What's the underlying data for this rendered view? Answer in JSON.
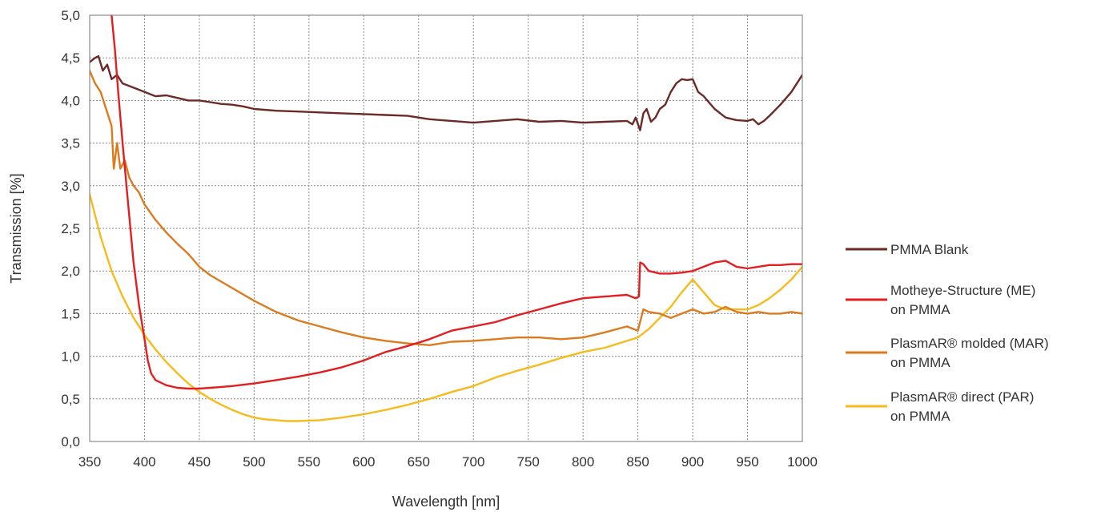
{
  "chart_data": {
    "type": "line",
    "title": "",
    "xlabel": "Wavelength [nm]",
    "ylabel": "Transmission [%]",
    "xlim": [
      350,
      1000
    ],
    "ylim": [
      0,
      5
    ],
    "xticks": [
      350,
      400,
      450,
      500,
      550,
      600,
      650,
      700,
      750,
      800,
      850,
      900,
      950,
      1000
    ],
    "yticks": [
      "0,0",
      "0,5",
      "1,0",
      "1,5",
      "2,0",
      "2,5",
      "3,0",
      "3,5",
      "4,0",
      "4,5",
      "5,0"
    ],
    "grid": true,
    "legend_position": "right",
    "series": [
      {
        "name": "PMMA Blank",
        "legend_lines": [
          "PMMA Blank"
        ],
        "color": "#6b2a25",
        "x": [
          350,
          355,
          358,
          362,
          366,
          370,
          375,
          380,
          390,
          400,
          410,
          420,
          430,
          440,
          450,
          460,
          470,
          480,
          490,
          500,
          520,
          540,
          560,
          580,
          600,
          620,
          640,
          660,
          680,
          700,
          720,
          740,
          760,
          780,
          800,
          820,
          840,
          845,
          848,
          852,
          855,
          858,
          862,
          866,
          870,
          875,
          880,
          885,
          890,
          895,
          900,
          905,
          910,
          920,
          930,
          940,
          950,
          955,
          960,
          965,
          970,
          980,
          990,
          1000
        ],
        "y": [
          4.45,
          4.5,
          4.52,
          4.35,
          4.42,
          4.25,
          4.3,
          4.2,
          4.15,
          4.1,
          4.05,
          4.06,
          4.03,
          4.0,
          4.0,
          3.98,
          3.96,
          3.95,
          3.93,
          3.9,
          3.88,
          3.87,
          3.86,
          3.85,
          3.84,
          3.83,
          3.82,
          3.78,
          3.76,
          3.74,
          3.76,
          3.78,
          3.75,
          3.76,
          3.74,
          3.75,
          3.76,
          3.72,
          3.8,
          3.65,
          3.85,
          3.9,
          3.75,
          3.8,
          3.9,
          3.95,
          4.1,
          4.2,
          4.25,
          4.24,
          4.25,
          4.1,
          4.05,
          3.9,
          3.8,
          3.77,
          3.76,
          3.78,
          3.72,
          3.76,
          3.82,
          3.95,
          4.1,
          4.3
        ]
      },
      {
        "name": "Motheye-Structure (ME) on PMMA",
        "legend_lines": [
          "Motheye-Structure (ME)",
          "on PMMA"
        ],
        "color": "#e41e20",
        "x": [
          370,
          373,
          376,
          380,
          385,
          390,
          395,
          400,
          403,
          406,
          410,
          420,
          430,
          440,
          450,
          460,
          470,
          480,
          500,
          520,
          540,
          560,
          580,
          600,
          620,
          640,
          660,
          680,
          700,
          720,
          740,
          760,
          780,
          800,
          820,
          840,
          848,
          851,
          852,
          855,
          860,
          870,
          880,
          890,
          900,
          910,
          920,
          930,
          940,
          950,
          960,
          970,
          980,
          990,
          1000
        ],
        "y": [
          5.0,
          4.6,
          4.1,
          3.5,
          2.8,
          2.1,
          1.6,
          1.2,
          0.95,
          0.8,
          0.72,
          0.66,
          0.63,
          0.62,
          0.62,
          0.63,
          0.64,
          0.65,
          0.68,
          0.72,
          0.76,
          0.81,
          0.87,
          0.95,
          1.05,
          1.12,
          1.2,
          1.3,
          1.35,
          1.4,
          1.48,
          1.55,
          1.62,
          1.68,
          1.7,
          1.72,
          1.68,
          1.7,
          2.1,
          2.08,
          2.0,
          1.97,
          1.97,
          1.98,
          2.0,
          2.05,
          2.1,
          2.12,
          2.05,
          2.03,
          2.05,
          2.07,
          2.07,
          2.08,
          2.08
        ]
      },
      {
        "name": "PlasmAR® molded (MAR) on PMMA",
        "legend_lines": [
          "PlasmAR® molded (MAR)",
          "on PMMA"
        ],
        "color": "#dc7a1e",
        "x": [
          350,
          355,
          360,
          365,
          370,
          372,
          375,
          378,
          382,
          386,
          390,
          395,
          400,
          410,
          420,
          430,
          440,
          450,
          460,
          480,
          500,
          520,
          540,
          560,
          580,
          600,
          620,
          640,
          660,
          680,
          700,
          720,
          740,
          760,
          780,
          800,
          820,
          840,
          850,
          855,
          860,
          870,
          880,
          890,
          900,
          910,
          920,
          930,
          940,
          950,
          960,
          970,
          980,
          990,
          1000
        ],
        "y": [
          4.35,
          4.2,
          4.1,
          3.9,
          3.7,
          3.2,
          3.5,
          3.2,
          3.3,
          3.1,
          3.0,
          2.92,
          2.78,
          2.6,
          2.45,
          2.32,
          2.2,
          2.05,
          1.95,
          1.8,
          1.65,
          1.52,
          1.42,
          1.35,
          1.28,
          1.22,
          1.18,
          1.15,
          1.13,
          1.17,
          1.18,
          1.2,
          1.22,
          1.22,
          1.2,
          1.22,
          1.28,
          1.35,
          1.3,
          1.55,
          1.52,
          1.5,
          1.45,
          1.5,
          1.55,
          1.5,
          1.52,
          1.58,
          1.52,
          1.5,
          1.52,
          1.5,
          1.5,
          1.52,
          1.5
        ]
      },
      {
        "name": "PlasmAR® direct (PAR) on PMMA",
        "legend_lines": [
          "PlasmAR® direct (PAR)",
          "on PMMA"
        ],
        "color": "#f6bb1c",
        "x": [
          350,
          360,
          370,
          380,
          390,
          400,
          410,
          420,
          430,
          440,
          450,
          460,
          470,
          480,
          490,
          500,
          510,
          520,
          530,
          540,
          550,
          560,
          580,
          600,
          620,
          640,
          660,
          680,
          700,
          720,
          740,
          760,
          780,
          800,
          820,
          840,
          850,
          860,
          870,
          880,
          890,
          900,
          910,
          920,
          930,
          940,
          950,
          960,
          970,
          980,
          990,
          1000
        ],
        "y": [
          2.9,
          2.4,
          2.0,
          1.7,
          1.45,
          1.25,
          1.08,
          0.93,
          0.8,
          0.68,
          0.58,
          0.5,
          0.43,
          0.37,
          0.32,
          0.28,
          0.26,
          0.25,
          0.24,
          0.24,
          0.245,
          0.25,
          0.28,
          0.32,
          0.37,
          0.43,
          0.5,
          0.58,
          0.65,
          0.75,
          0.83,
          0.9,
          0.98,
          1.05,
          1.1,
          1.18,
          1.22,
          1.32,
          1.45,
          1.58,
          1.75,
          1.9,
          1.75,
          1.6,
          1.55,
          1.55,
          1.55,
          1.6,
          1.68,
          1.78,
          1.9,
          2.05
        ]
      }
    ]
  }
}
